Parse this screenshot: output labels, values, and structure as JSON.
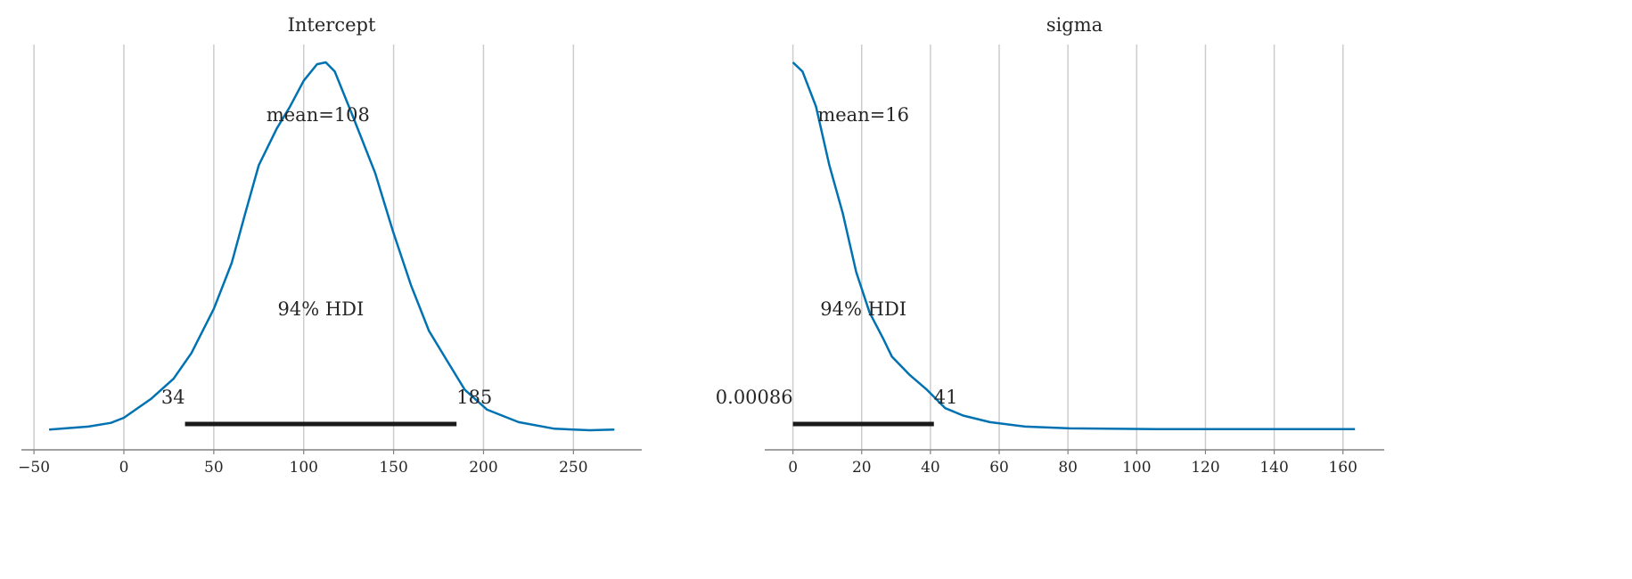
{
  "chart_data": [
    {
      "type": "line",
      "title": "Intercept",
      "xlabel": "",
      "ylabel": "",
      "xlim": [
        -57,
        288
      ],
      "xticks": [
        -50,
        0,
        50,
        100,
        150,
        200,
        250
      ],
      "xtick_labels": [
        "−50",
        "0",
        "50",
        "100",
        "150",
        "200",
        "250"
      ],
      "grid": "vertical",
      "density_note": "relative density (max = 1)",
      "x": [
        -41.6,
        -19.7,
        -7.2,
        0,
        15,
        27.6,
        37.6,
        50,
        60,
        67.5,
        75,
        85,
        92.4,
        100,
        107.4,
        112.3,
        117.3,
        127.2,
        139.7,
        149.7,
        159.6,
        169.7,
        179.6,
        189.6,
        202,
        219.5,
        239.4,
        259,
        272.8
      ],
      "y": [
        0.002,
        0.01,
        0.02,
        0.034,
        0.085,
        0.14,
        0.21,
        0.33,
        0.455,
        0.59,
        0.72,
        0.82,
        0.88,
        0.95,
        0.995,
        1.0,
        0.975,
        0.855,
        0.7,
        0.54,
        0.395,
        0.27,
        0.19,
        0.11,
        0.056,
        0.022,
        0.004,
        0.0,
        0.002
      ],
      "mean_label": "mean=108",
      "hdi_label": "94% HDI",
      "hdi": [
        34,
        185
      ],
      "hdi_labels": [
        "34",
        "185"
      ],
      "color": "#0072b2"
    },
    {
      "type": "line",
      "title": "sigma",
      "xlabel": "",
      "ylabel": "",
      "xlim": [
        -8.2,
        172
      ],
      "xticks": [
        0,
        20,
        40,
        60,
        80,
        100,
        120,
        140,
        160
      ],
      "xtick_labels": [
        "0",
        "20",
        "40",
        "60",
        "80",
        "100",
        "120",
        "140",
        "160"
      ],
      "grid": "vertical",
      "density_note": "relative density (max = 1)",
      "x": [
        0,
        2.8,
        6.7,
        10.6,
        14.5,
        18.4,
        22.3,
        26.2,
        28.8,
        34,
        39,
        44.3,
        49.5,
        57.3,
        67.6,
        80.6,
        106,
        132,
        163.5
      ],
      "y": [
        1.0,
        0.975,
        0.88,
        0.72,
        0.59,
        0.43,
        0.32,
        0.25,
        0.2,
        0.15,
        0.11,
        0.06,
        0.04,
        0.022,
        0.01,
        0.005,
        0.003,
        0.003,
        0.003
      ],
      "mean_label": "mean=16",
      "hdi_label": "94% HDI",
      "hdi": [
        0.00086,
        41
      ],
      "hdi_labels": [
        "0.00086",
        "41"
      ],
      "color": "#0072b2"
    }
  ]
}
